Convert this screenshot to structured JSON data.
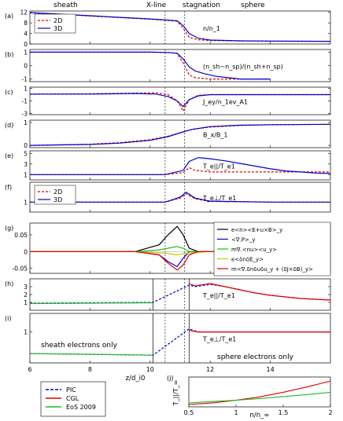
{
  "header": {
    "sheath": "sheath",
    "xline": "X-line",
    "stagnation": "stagnation",
    "sphere": "sphere"
  },
  "xaxis": {
    "label": "z/d_i0",
    "ticks": [
      6,
      8,
      10,
      12,
      14
    ],
    "range": [
      6,
      16
    ]
  },
  "colors": {
    "red": "#dd0000",
    "blue": "#0000cc",
    "green": "#22bb22",
    "yellow": "#c8c800",
    "magenta": "#cc33cc",
    "black": "#000000"
  },
  "chart_data": [
    {
      "id": "a",
      "panel_label": "(a)",
      "type": "line",
      "ylabel": "n/n_1",
      "ylim": [
        0,
        12.5
      ],
      "yticks": [
        0,
        4,
        8,
        12
      ],
      "legend": [
        "2D",
        "3D"
      ],
      "series": [
        {
          "name": "2D",
          "style": "dashed",
          "color": "#dd0000",
          "x": [
            6,
            7,
            8,
            9,
            10,
            10.5,
            10.9,
            11.1,
            11.3,
            11.6,
            12,
            13,
            14,
            15,
            16
          ],
          "y": [
            11.8,
            11.2,
            10.6,
            10.0,
            9.4,
            9.0,
            8.6,
            6.0,
            2.5,
            1.6,
            1.3,
            1.2,
            1.1,
            1.05,
            1.0
          ]
        },
        {
          "name": "3D",
          "style": "solid",
          "color": "#0000cc",
          "x": [
            6,
            7,
            8,
            9,
            10,
            10.5,
            10.9,
            11.1,
            11.3,
            11.6,
            12,
            13,
            14,
            15,
            16
          ],
          "y": [
            11.9,
            11.3,
            10.7,
            10.1,
            9.5,
            9.1,
            8.8,
            7.0,
            4.0,
            2.2,
            1.5,
            1.2,
            1.1,
            1.05,
            1.0
          ]
        }
      ]
    },
    {
      "id": "b",
      "panel_label": "(b)",
      "type": "line",
      "ylabel": "(n_sh−n_sp)/(n_sh+n_sp)",
      "ylim": [
        -1.2,
        1.2
      ],
      "yticks": [
        -1,
        0,
        1
      ],
      "series": [
        {
          "name": "2D",
          "style": "dashed",
          "color": "#dd0000",
          "x": [
            6,
            8,
            10,
            10.6,
            10.9,
            11.1,
            11.3,
            11.5,
            12,
            13,
            14
          ],
          "y": [
            1.0,
            1.0,
            1.0,
            0.98,
            0.9,
            0.2,
            -0.7,
            -0.9,
            -1.0,
            -1.0,
            -1.0
          ]
        },
        {
          "name": "3D",
          "style": "solid",
          "color": "#0000cc",
          "x": [
            6,
            8,
            10,
            10.6,
            10.9,
            11.1,
            11.3,
            11.5,
            11.8,
            12.2,
            12.6,
            13,
            14
          ],
          "y": [
            1.0,
            1.0,
            1.0,
            0.98,
            0.92,
            0.5,
            -0.1,
            -0.4,
            -0.6,
            -0.8,
            -0.9,
            -1.0,
            -1.0
          ]
        }
      ]
    },
    {
      "id": "c",
      "panel_label": "(c)",
      "type": "line",
      "ylabel": "J_ey/n_1ev_A1",
      "ylim": [
        -3.2,
        1.2
      ],
      "yticks": [
        -3,
        -1,
        1
      ],
      "series": [
        {
          "name": "2D",
          "style": "dashed",
          "color": "#dd0000",
          "x": [
            6,
            8,
            9.5,
            10.2,
            10.6,
            10.9,
            11.1,
            11.3,
            11.6,
            12,
            14,
            16
          ],
          "y": [
            0.1,
            0.15,
            0.25,
            0.3,
            0.0,
            -1.0,
            -2.6,
            -0.8,
            -0.1,
            0.0,
            0.0,
            0.0
          ]
        },
        {
          "name": "3D",
          "style": "solid",
          "color": "#0000cc",
          "x": [
            6,
            8,
            9.5,
            10.2,
            10.6,
            10.9,
            11.1,
            11.3,
            11.6,
            12,
            14,
            16
          ],
          "y": [
            0.1,
            0.1,
            0.2,
            0.1,
            -0.3,
            -1.0,
            -1.9,
            -0.8,
            -0.2,
            0.0,
            0.0,
            0.0
          ]
        }
      ]
    },
    {
      "id": "d",
      "panel_label": "(d)",
      "type": "line",
      "ylabel": "B_x/B_1",
      "ylim": [
        -0.1,
        1.1
      ],
      "yticks": [
        0,
        1
      ],
      "series": [
        {
          "name": "2D",
          "style": "dashed",
          "color": "#dd0000",
          "x": [
            6,
            8,
            9,
            10,
            10.6,
            11,
            11.4,
            12,
            13,
            14,
            16
          ],
          "y": [
            0.0,
            0.05,
            0.12,
            0.25,
            0.4,
            0.55,
            0.7,
            0.8,
            0.87,
            0.9,
            0.92
          ]
        },
        {
          "name": "3D",
          "style": "solid",
          "color": "#0000cc",
          "x": [
            6,
            8,
            9,
            10,
            10.6,
            11,
            11.4,
            12,
            13,
            14,
            16
          ],
          "y": [
            0.0,
            0.04,
            0.1,
            0.22,
            0.38,
            0.55,
            0.7,
            0.82,
            0.88,
            0.9,
            0.92
          ]
        }
      ]
    },
    {
      "id": "e",
      "panel_label": "(e)",
      "type": "line",
      "ylabel": "T_e||/T_e1",
      "ylim": [
        0,
        5.5
      ],
      "yticks": [
        1,
        3,
        5
      ],
      "series": [
        {
          "name": "2D",
          "style": "dashed",
          "color": "#dd0000",
          "x": [
            6,
            9,
            10.5,
            11.1,
            11.3,
            11.5,
            12,
            13,
            14,
            16
          ],
          "y": [
            1.0,
            1.0,
            1.0,
            1.4,
            2.3,
            1.8,
            1.5,
            1.5,
            1.5,
            1.5
          ]
        },
        {
          "name": "3D",
          "style": "solid",
          "color": "#0000cc",
          "x": [
            6,
            9,
            10.5,
            11.1,
            11.3,
            11.6,
            12,
            12.5,
            13,
            13.5,
            14,
            14.5,
            15,
            15.5,
            16
          ],
          "y": [
            1.0,
            1.0,
            1.0,
            1.8,
            3.5,
            4.2,
            4.0,
            3.6,
            3.1,
            2.6,
            2.1,
            1.7,
            1.5,
            1.3,
            1.2
          ]
        }
      ]
    },
    {
      "id": "f",
      "panel_label": "(f)",
      "type": "line",
      "ylabel": "T_e⊥/T_e1",
      "ylim": [
        0.7,
        1.6
      ],
      "yticks": [
        1
      ],
      "legend": [
        "2D",
        "3D"
      ],
      "series": [
        {
          "name": "2D",
          "style": "dashed",
          "color": "#dd0000",
          "x": [
            6,
            9,
            10.5,
            11.0,
            11.2,
            11.5,
            12,
            14,
            16
          ],
          "y": [
            1.0,
            1.0,
            1.0,
            1.12,
            1.25,
            1.1,
            1.02,
            1.0,
            1.0
          ]
        },
        {
          "name": "3D",
          "style": "solid",
          "color": "#0000cc",
          "x": [
            6,
            9,
            10.5,
            11.0,
            11.2,
            11.5,
            12,
            14,
            16
          ],
          "y": [
            1.0,
            1.0,
            1.0,
            1.15,
            1.3,
            1.12,
            1.03,
            1.0,
            1.0
          ]
        }
      ]
    },
    {
      "id": "g",
      "panel_label": "(g)",
      "type": "line",
      "ylabel": "",
      "ylim": [
        -0.065,
        0.085
      ],
      "yticks": [
        -0.05,
        0,
        0.05
      ],
      "legend": [
        "e<n><E+u×B>_y",
        "<∇.P>_y",
        "m∇.<nu><u_y>",
        "e<δnδE_y>",
        "m<∇.δnδuδu_y + (δJ×δB)_y>"
      ],
      "series": [
        {
          "name": "e<n><E+u×B>_y",
          "color": "#000000",
          "x": [
            6,
            9.5,
            10.3,
            10.6,
            10.9,
            11.1,
            11.3,
            11.6,
            12,
            16
          ],
          "y": [
            0.0,
            0.0,
            0.02,
            0.05,
            0.075,
            0.05,
            0.01,
            0.0,
            0.0,
            0.0
          ]
        },
        {
          "name": "<∇.P>_y",
          "color": "#0000cc",
          "x": [
            6,
            9.5,
            10.3,
            10.6,
            10.9,
            11.1,
            11.3,
            11.6,
            12,
            16
          ],
          "y": [
            0.0,
            0.0,
            -0.01,
            -0.03,
            -0.045,
            -0.02,
            0.0,
            0.0,
            0.0,
            0.0
          ]
        },
        {
          "name": "m∇.<nu><u_y>",
          "color": "#22bb22",
          "x": [
            6,
            9.5,
            10.3,
            10.6,
            10.9,
            11.1,
            11.3,
            12,
            16
          ],
          "y": [
            0.0,
            0.0,
            0.005,
            0.01,
            0.015,
            0.01,
            0.0,
            0.0,
            0.0
          ]
        },
        {
          "name": "e<δnδE_y>",
          "color": "#c8c800",
          "x": [
            6,
            9.5,
            10.5,
            10.9,
            11.2,
            12,
            16
          ],
          "y": [
            0.0,
            0.0,
            -0.005,
            -0.01,
            -0.005,
            0.0,
            0.0
          ]
        },
        {
          "name": "m<∇.δnδuδu_y + (δJ×δB)_y>",
          "color": "#dd0000",
          "x": [
            6,
            9.5,
            10.3,
            10.6,
            10.9,
            11.1,
            11.3,
            11.6,
            12,
            16
          ],
          "y": [
            0.0,
            0.0,
            -0.01,
            -0.035,
            -0.055,
            -0.04,
            -0.01,
            0.0,
            0.0,
            0.0
          ]
        }
      ]
    },
    {
      "id": "h",
      "panel_label": "(h)",
      "type": "line",
      "ylabel": "T_e||/T_e1",
      "ylim": [
        0,
        4
      ],
      "yticks": [
        1,
        2,
        3
      ],
      "series": [
        {
          "name": "PIC",
          "style": "dashed",
          "color": "#0000cc",
          "x": [
            6,
            10.1,
            11.3,
            11.5,
            12,
            12.5,
            13,
            13.5,
            14,
            15,
            16
          ],
          "y": [
            0.9,
            1.0,
            3.2,
            3.0,
            3.3,
            3.0,
            2.6,
            2.2,
            1.9,
            1.5,
            1.3
          ]
        },
        {
          "name": "CGL",
          "style": "solid",
          "color": "#dd0000",
          "x": [
            11.3,
            11.5,
            12,
            12.5,
            13,
            13.5,
            14,
            15,
            16
          ],
          "y": [
            3.4,
            3.1,
            3.4,
            3.0,
            2.6,
            2.2,
            1.9,
            1.5,
            1.3
          ]
        },
        {
          "name": "EoS 2009",
          "style": "solid",
          "color": "#22bb22",
          "x": [
            6,
            8,
            10.1
          ],
          "y": [
            0.85,
            0.9,
            0.95
          ]
        }
      ]
    },
    {
      "id": "i",
      "panel_label": "(i)",
      "type": "line",
      "ylabel": "T_e⊥/T_e1",
      "ylim": [
        0,
        1.6
      ],
      "yticks": [
        1
      ],
      "series": [
        {
          "name": "PIC",
          "style": "dashed",
          "color": "#0000cc",
          "x": [
            6,
            10.1,
            11.3,
            11.6,
            12,
            14,
            16
          ],
          "y": [
            0.3,
            0.25,
            1.1,
            1.0,
            1.0,
            1.0,
            1.0
          ]
        },
        {
          "name": "CGL",
          "style": "solid",
          "color": "#dd0000",
          "x": [
            11.3,
            11.6,
            12,
            14,
            16
          ],
          "y": [
            1.05,
            1.0,
            1.0,
            1.0,
            1.0
          ]
        },
        {
          "name": "EoS 2009",
          "style": "solid",
          "color": "#22bb22",
          "x": [
            6,
            8,
            10.1
          ],
          "y": [
            0.3,
            0.28,
            0.25
          ]
        }
      ]
    },
    {
      "id": "j",
      "panel_label": "(j)",
      "type": "line",
      "xlabel": "n/n_∞",
      "ylabel": "T_||/T_∞",
      "xlim": [
        0.5,
        2
      ],
      "xticks": [
        0.5,
        1,
        1.5,
        2
      ],
      "ylim": [
        0,
        4.5
      ],
      "series": [
        {
          "name": "CGL",
          "color": "#dd0000",
          "x": [
            0.5,
            0.75,
            1.0,
            1.25,
            1.5,
            1.75,
            2.0
          ],
          "y": [
            0.35,
            0.6,
            1.0,
            1.5,
            2.2,
            3.0,
            3.9
          ]
        },
        {
          "name": "EoS 2009",
          "color": "#22bb22",
          "x": [
            0.5,
            0.75,
            1.0,
            1.25,
            1.5,
            1.75,
            2.0
          ],
          "y": [
            0.6,
            0.8,
            1.0,
            1.25,
            1.55,
            1.85,
            2.2
          ]
        }
      ]
    }
  ],
  "annotations": {
    "sheath_only": "sheath electrons only",
    "sphere_only": "sphere electrons only"
  },
  "bottom_legend": [
    "PIC",
    "CGL",
    "EoS 2009"
  ]
}
